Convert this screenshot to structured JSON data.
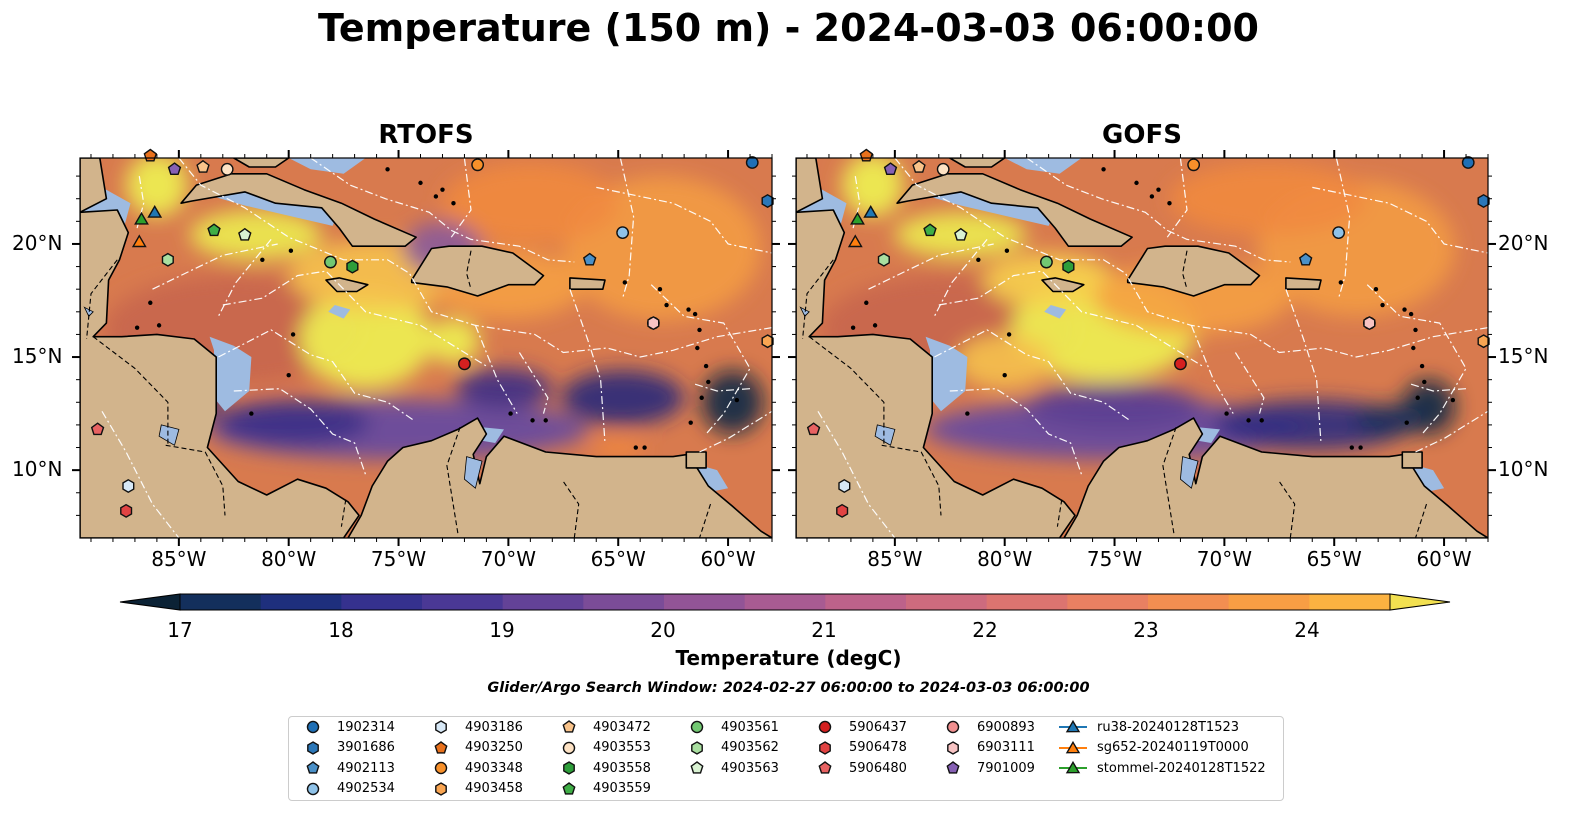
{
  "title": "Temperature (150 m) - 2024-03-03 06:00:00",
  "panels": [
    {
      "title": "RTOFS"
    },
    {
      "title": "GOFS"
    }
  ],
  "map": {
    "lon_range": [
      -89.5,
      -58.0
    ],
    "lat_range": [
      7.0,
      23.8
    ],
    "lon_ticks": [
      "85°W",
      "80°W",
      "75°W",
      "70°W",
      "65°W",
      "60°W"
    ],
    "lat_ticks": [
      "20°N",
      "15°N",
      "10°N"
    ],
    "colors": {
      "land": "#d2b48c",
      "shallow": "#9ebbe1",
      "cold": "#0b2235",
      "warm": "#eef252",
      "mid": "#6c4b9a"
    }
  },
  "colorbar": {
    "label": "Temperature (degC)",
    "ticks": [
      "17",
      "18",
      "19",
      "20",
      "21",
      "22",
      "23",
      "24"
    ],
    "min": 16.75,
    "max": 24.75,
    "step": 0.5
  },
  "search_window": "Glider/Argo Search Window: 2024-02-27 06:00:00 to 2024-03-03 06:00:00",
  "legend": [
    {
      "label": "1902314",
      "marker": "circle",
      "color": "#1f6fb5"
    },
    {
      "label": "3901686",
      "marker": "hexagon",
      "color": "#2b77b8"
    },
    {
      "label": "4902113",
      "marker": "pentagon",
      "color": "#4a90c8"
    },
    {
      "label": "4902534",
      "marker": "circle",
      "color": "#8fc2e8"
    },
    {
      "label": "4903186",
      "marker": "hexagon",
      "color": "#d7e8f6"
    },
    {
      "label": "4903250",
      "marker": "pentagon",
      "color": "#e8711c"
    },
    {
      "label": "4903348",
      "marker": "circle",
      "color": "#f7902a"
    },
    {
      "label": "4903458",
      "marker": "hexagon",
      "color": "#f9a552"
    },
    {
      "label": "4903472",
      "marker": "pentagon",
      "color": "#f9c38a"
    },
    {
      "label": "4903553",
      "marker": "circle",
      "color": "#fde2c4"
    },
    {
      "label": "4903558",
      "marker": "hexagon",
      "color": "#2e9e3a"
    },
    {
      "label": "4903559",
      "marker": "pentagon",
      "color": "#3fae46"
    },
    {
      "label": "4903561",
      "marker": "circle",
      "color": "#72c872"
    },
    {
      "label": "4903562",
      "marker": "hexagon",
      "color": "#a9dfa0"
    },
    {
      "label": "4903563",
      "marker": "pentagon",
      "color": "#d9f2d2"
    },
    {
      "label": "5906437",
      "marker": "circle",
      "color": "#d42020"
    },
    {
      "label": "5906478",
      "marker": "hexagon",
      "color": "#e14343"
    },
    {
      "label": "5906480",
      "marker": "pentagon",
      "color": "#e86262"
    },
    {
      "label": "6900893",
      "marker": "circle",
      "color": "#f08f8f"
    },
    {
      "label": "6903111",
      "marker": "hexagon",
      "color": "#f7c3c3"
    },
    {
      "label": "7901009",
      "marker": "pentagon",
      "color": "#8660b4"
    },
    {
      "label": "ru38-20240128T1523",
      "marker": "triangle-line",
      "color": "#1f77b4"
    },
    {
      "label": "sg652-20240119T0000",
      "marker": "triangle-line",
      "color": "#ff7f0e"
    },
    {
      "label": "stommel-20240128T1522",
      "marker": "triangle-line",
      "color": "#2ca02c"
    }
  ],
  "observations": [
    {
      "id": "1902314",
      "lon": -58.9,
      "lat": 23.6
    },
    {
      "id": "3901686",
      "lon": -58.2,
      "lat": 21.9
    },
    {
      "id": "4902113",
      "lon": -66.3,
      "lat": 19.3
    },
    {
      "id": "4902534",
      "lon": -64.8,
      "lat": 20.5
    },
    {
      "id": "4903186",
      "lon": -87.3,
      "lat": 9.3
    },
    {
      "id": "4903250",
      "lon": -86.3,
      "lat": 23.9
    },
    {
      "id": "4903348",
      "lon": -71.4,
      "lat": 23.5
    },
    {
      "id": "4903458",
      "lon": -58.2,
      "lat": 15.7
    },
    {
      "id": "4903472",
      "lon": -83.9,
      "lat": 23.4
    },
    {
      "id": "4903553",
      "lon": -82.8,
      "lat": 23.3
    },
    {
      "id": "4903558",
      "lon": -77.1,
      "lat": 19.0
    },
    {
      "id": "4903559",
      "lon": -83.4,
      "lat": 20.6
    },
    {
      "id": "4903561",
      "lon": -78.1,
      "lat": 19.2
    },
    {
      "id": "4903562",
      "lon": -85.5,
      "lat": 19.3
    },
    {
      "id": "4903563",
      "lon": -82.0,
      "lat": 20.4
    },
    {
      "id": "5906437",
      "lon": -72.0,
      "lat": 14.7
    },
    {
      "id": "5906478",
      "lon": -87.4,
      "lat": 8.2
    },
    {
      "id": "5906480",
      "lon": -88.7,
      "lat": 11.8
    },
    {
      "id": "6900893",
      "lon": -63.4,
      "lat": 16.5
    },
    {
      "id": "6903111",
      "lon": -63.4,
      "lat": 16.5
    },
    {
      "id": "7901009",
      "lon": -85.2,
      "lat": 23.3
    },
    {
      "id": "ru38-20240128T1523",
      "lon": -86.1,
      "lat": 21.4
    },
    {
      "id": "sg652-20240119T0000",
      "lon": -86.8,
      "lat": 20.1
    },
    {
      "id": "stommel-20240128T1522",
      "lon": -86.7,
      "lat": 21.1
    }
  ]
}
